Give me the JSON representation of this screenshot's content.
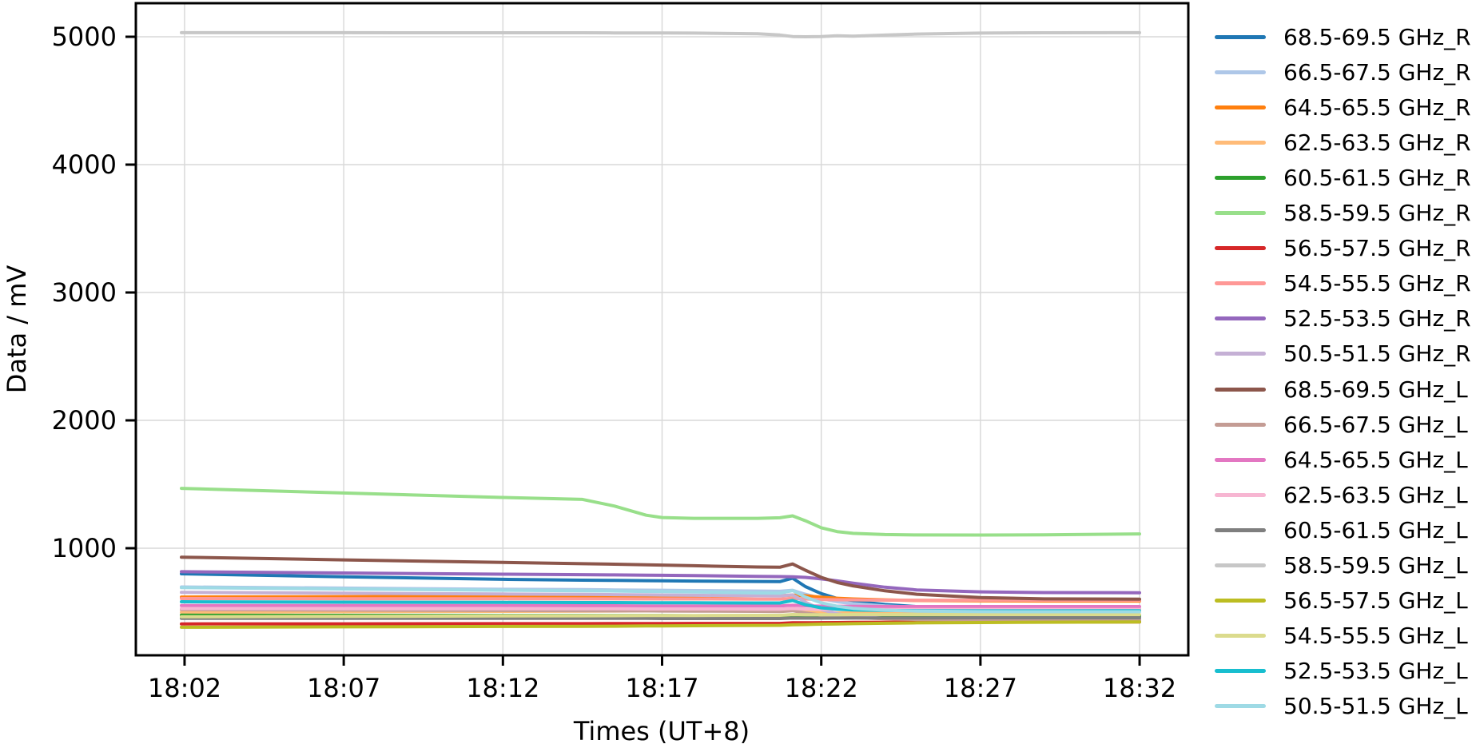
{
  "chart_data": {
    "type": "line",
    "title": "",
    "xlabel": "Times (UT+8)",
    "ylabel": "Data / mV",
    "grid": true,
    "legend_position": "right-outside",
    "x_tick_labels": [
      "18:02",
      "18:07",
      "18:12",
      "18:17",
      "18:22",
      "18:27",
      "18:32"
    ],
    "x_tick_minutes": [
      2,
      7,
      12,
      17,
      22,
      27,
      32
    ],
    "y_tick_labels": [
      "1000",
      "2000",
      "3000",
      "4000",
      "5000"
    ],
    "y_ticks": [
      1000,
      2000,
      3000,
      4000,
      5000
    ],
    "xlim_minutes": [
      0.47,
      33.53
    ],
    "ylim": [
      162.5,
      5262.5
    ],
    "x_minutes": [
      1.9,
      7,
      12,
      14.5,
      15.5,
      16.5,
      17,
      18,
      20,
      20.7,
      21.1,
      21.5,
      22,
      22.5,
      23,
      24,
      25,
      27,
      29,
      32
    ],
    "series": [
      {
        "name": "68.5-69.5 GHz_R",
        "color": "#1f77b4",
        "values": [
          800,
          776,
          757,
          750,
          748,
          746,
          745,
          743,
          740,
          739,
          766,
          700,
          645,
          607,
          585,
          560,
          543,
          527,
          520,
          518
        ]
      },
      {
        "name": "66.5-67.5 GHz_R",
        "color": "#aec7e8",
        "values": [
          697,
          688,
          679,
          676,
          674,
          672,
          671,
          669,
          665,
          663,
          671,
          640,
          606,
          581,
          566,
          548,
          538,
          530,
          526,
          525
        ]
      },
      {
        "name": "64.5-65.5 GHz_R",
        "color": "#ff7f0e",
        "values": [
          618,
          621,
          624,
          625,
          626,
          626,
          627,
          627,
          628,
          628,
          634,
          628,
          617,
          609,
          603,
          596,
          591,
          588,
          587,
          587
        ]
      },
      {
        "name": "62.5-63.5 GHz_R",
        "color": "#ffbb78",
        "values": [
          499,
          503,
          506,
          508,
          509,
          510,
          510,
          511,
          512,
          512,
          518,
          504,
          495,
          493,
          495,
          498,
          501,
          505,
          508,
          509
        ]
      },
      {
        "name": "60.5-61.5 GHz_R",
        "color": "#2ca02c",
        "values": [
          476,
          475,
          474,
          474,
          473,
          473,
          473,
          472,
          472,
          472,
          476,
          471,
          469,
          468,
          468,
          468,
          468,
          469,
          469,
          470
        ]
      },
      {
        "name": "58.5-59.5 GHz_R",
        "color": "#98df8a",
        "values": [
          1468,
          1432,
          1397,
          1382,
          1330,
          1258,
          1240,
          1234,
          1234,
          1238,
          1253,
          1215,
          1160,
          1130,
          1116,
          1107,
          1104,
          1103,
          1105,
          1112
        ]
      },
      {
        "name": "56.5-57.5 GHz_R",
        "color": "#d62728",
        "values": [
          408,
          409,
          410,
          410,
          411,
          411,
          411,
          412,
          412,
          412,
          417,
          417,
          418,
          419,
          420,
          421,
          422,
          423,
          424,
          424
        ]
      },
      {
        "name": "54.5-55.5 GHz_R",
        "color": "#ff9896",
        "values": [
          606,
          605,
          605,
          604,
          604,
          603,
          603,
          603,
          602,
          602,
          608,
          603,
          599,
          597,
          596,
          594,
          593,
          593,
          593,
          593
        ]
      },
      {
        "name": "52.5-53.5 GHz_R",
        "color": "#9467bd",
        "values": [
          816,
          806,
          797,
          793,
          791,
          789,
          788,
          786,
          780,
          778,
          777,
          772,
          760,
          745,
          727,
          695,
          674,
          659,
          653,
          652
        ]
      },
      {
        "name": "50.5-51.5 GHz_R",
        "color": "#c5b0d5",
        "values": [
          655,
          648,
          642,
          639,
          637,
          635,
          634,
          632,
          628,
          627,
          635,
          578,
          520,
          487,
          468,
          452,
          447,
          444,
          443,
          443
        ]
      },
      {
        "name": "68.5-69.5 GHz_L",
        "color": "#8c564b",
        "values": [
          930,
          909,
          889,
          879,
          875,
          870,
          868,
          863,
          853,
          851,
          877,
          828,
          772,
          732,
          705,
          667,
          640,
          614,
          604,
          602
        ]
      },
      {
        "name": "66.5-67.5 GHz_L",
        "color": "#c49c94",
        "values": [
          520,
          516,
          513,
          511,
          510,
          510,
          509,
          508,
          506,
          505,
          511,
          494,
          477,
          465,
          457,
          448,
          443,
          439,
          437,
          437
        ]
      },
      {
        "name": "64.5-65.5 GHz_L",
        "color": "#e377c2",
        "values": [
          552,
          551,
          551,
          550,
          550,
          549,
          549,
          549,
          548,
          548,
          554,
          550,
          547,
          546,
          545,
          544,
          544,
          544,
          544,
          544
        ]
      },
      {
        "name": "62.5-63.5 GHz_L",
        "color": "#f7b6d2",
        "values": [
          528,
          527,
          527,
          526,
          526,
          525,
          525,
          525,
          524,
          524,
          529,
          524,
          522,
          521,
          521,
          520,
          520,
          520,
          520,
          520
        ]
      },
      {
        "name": "60.5-61.5 GHz_L",
        "color": "#7f7f7f",
        "values": [
          452,
          452,
          451,
          451,
          451,
          451,
          450,
          450,
          450,
          450,
          454,
          453,
          453,
          454,
          454,
          455,
          455,
          456,
          456,
          456
        ]
      },
      {
        "name": "58.5-59.5 GHz_L",
        "color": "#c7c7c7",
        "values": [
          5032,
          5032,
          5031,
          5031,
          5030,
          5030,
          5030,
          5029,
          5024,
          5014,
          5002,
          5000,
          5002,
          5008,
          5005,
          5013,
          5021,
          5029,
          5031,
          5032
        ]
      },
      {
        "name": "56.5-57.5 GHz_L",
        "color": "#bcbd22",
        "values": [
          382,
          385,
          388,
          389,
          390,
          392,
          392,
          394,
          396,
          397,
          402,
          403,
          406,
          408,
          410,
          413,
          416,
          419,
          421,
          423
        ]
      },
      {
        "name": "54.5-55.5 GHz_L",
        "color": "#dbdb8d",
        "values": [
          464,
          467,
          470,
          471,
          472,
          473,
          473,
          474,
          475,
          475,
          481,
          480,
          480,
          480,
          481,
          481,
          481,
          481,
          481,
          481
        ]
      },
      {
        "name": "52.5-53.5 GHz_L",
        "color": "#17becf",
        "values": [
          581,
          578,
          576,
          575,
          575,
          574,
          574,
          573,
          572,
          572,
          591,
          558,
          534,
          523,
          517,
          513,
          511,
          510,
          510,
          511
        ]
      },
      {
        "name": "50.5-51.5 GHz_L",
        "color": "#9edae5",
        "values": [
          692,
          681,
          671,
          667,
          665,
          662,
          661,
          658,
          650,
          648,
          669,
          618,
          573,
          546,
          530,
          515,
          508,
          504,
          503,
          503
        ]
      }
    ],
    "style": {
      "grid_color": "#d9d9d9",
      "spine_color": "#000000",
      "background": "#ffffff",
      "line_width": 4
    }
  }
}
